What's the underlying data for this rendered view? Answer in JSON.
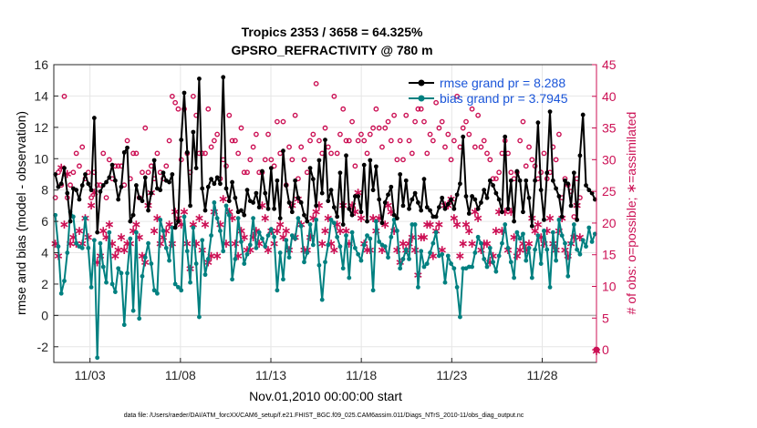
{
  "chart_data": {
    "type": "line",
    "title_line1": "Tropics 2353 / 3658 = 64.325%",
    "title_line2": "GPSRO_REFRACTIVITY @ 780 m",
    "xlabel": "Nov.01,2010 00:00:00 start",
    "ylabel_left": "rmse and bias (model - observation)",
    "ylabel_right": "# of obs: o=possible; ∗=assimilated",
    "footnote": "data file: /Users/raeder/DAI/ATM_forcXX/CAM6_setup/f.e21.FHIST_BGC.f09_025.CAM6assim.011/Diags_NTrS_2010-11/obs_diag_output.nc",
    "xlim": [
      0.5,
      30.5
    ],
    "ylim_left": [
      -3,
      16
    ],
    "ylim_right": [
      -2,
      45
    ],
    "x_ticks": [
      2.5,
      7.5,
      12.5,
      17.5,
      22.5,
      27.5
    ],
    "x_tick_labels": [
      "11/03",
      "11/08",
      "11/13",
      "11/18",
      "11/23",
      "11/28"
    ],
    "y_left_ticks": [
      "-2",
      "0",
      "2",
      "4",
      "6",
      "8",
      "10",
      "12",
      "14",
      "16"
    ],
    "y_right_ticks": [
      "0",
      "5",
      "10",
      "15",
      "20",
      "25",
      "30",
      "35",
      "40",
      "45"
    ],
    "colors": {
      "rmse": "#000000",
      "bias": "#008080",
      "obs": "#cc1155",
      "legend_text": "#1a55d9",
      "zero_line": "#b0b0b0"
    },
    "legend": [
      {
        "label": "rmse grand pr = 8.288",
        "color": "#000000"
      },
      {
        "label": "bias grand pr = 3.7945",
        "color": "#008080"
      }
    ],
    "series": [
      {
        "name": "rmse",
        "values": [
          9.0,
          8.2,
          8.4,
          9.4,
          7.8,
          6.0,
          8.1,
          8.0,
          7.4,
          8.3,
          9.0,
          8.4,
          8.0,
          12.6,
          5.3,
          7.9,
          8.3,
          8.5,
          8.8,
          9.6,
          8.6,
          7.4,
          8.2,
          10.4,
          10.7,
          6.0,
          6.4,
          8.3,
          7.5,
          7.3,
          8.8,
          6.7,
          7.8,
          9.9,
          8.1,
          8.0,
          9.1,
          8.6,
          8.5,
          9.0,
          5.6,
          6.0,
          11.2,
          14.2,
          10.4,
          7.0,
          11.7,
          9.4,
          15.1,
          8.1,
          6.7,
          8.2,
          8.7,
          8.4,
          8.8,
          8.4,
          15.2,
          8.1,
          7.3,
          8.5,
          7.5,
          6.6,
          6.7,
          6.4,
          8.0,
          7.3,
          7.2,
          7.8,
          6.9,
          9.2,
          7.8,
          6.8,
          9.4,
          6.8,
          8.6,
          6.2,
          10.5,
          8.3,
          7.2,
          6.6,
          8.6,
          7.5,
          7.2,
          6.4,
          6.0,
          9.4,
          8.7,
          7.0,
          9.9,
          7.8,
          11.2,
          7.3,
          8.0,
          6.9,
          6.3,
          9.1,
          5.8,
          10.2,
          6.8,
          6.4,
          7.6,
          7.6,
          6.6,
          9.6,
          6.0,
          9.9,
          8.0,
          9.5,
          7.4,
          5.9,
          7.2,
          7.7,
          8.2,
          6.4,
          6.2,
          9.0,
          7.0,
          8.6,
          6.8,
          7.4,
          7.8,
          7.2,
          6.7,
          8.7,
          6.9,
          6.7,
          6.3,
          6.3,
          6.9,
          7.5,
          6.8,
          7.1,
          7.4,
          6.8,
          7.7,
          8.4,
          11.4,
          7.6,
          6.5,
          7.6,
          7.4,
          6.8,
          7.2,
          8.0,
          7.5,
          8.6,
          8.3,
          7.8,
          7.4,
          6.6,
          11.4,
          6.8,
          8.6,
          6.0,
          9.2,
          8.6,
          6.6,
          8.6,
          7.5,
          5.7,
          8.6,
          12.3,
          8.0,
          6.1,
          9.1,
          13.0,
          8.6,
          8.1,
          7.6,
          6.3,
          8.6,
          8.4,
          7.0,
          9.1,
          6.1,
          10.2,
          12.8,
          8.3,
          8.0,
          7.8,
          7.4
        ]
      },
      {
        "name": "bias",
        "values": [
          6.4,
          4.4,
          1.4,
          2.2,
          4.0,
          6.6,
          6.3,
          4.6,
          4.4,
          4.3,
          6.2,
          4.3,
          1.8,
          4.8,
          -2.7,
          4.6,
          3.1,
          2.1,
          5.3,
          2.0,
          1.5,
          3.0,
          2.7,
          -0.6,
          2.7,
          4.9,
          0.3,
          5.3,
          -0.2,
          2.5,
          3.7,
          4.6,
          3.3,
          1.6,
          1.4,
          6.1,
          5.4,
          4.3,
          3.5,
          5.6,
          2.0,
          1.8,
          1.6,
          6.3,
          4.1,
          2.1,
          5.6,
          3.3,
          -0.1,
          4.8,
          2.6,
          3.6,
          5.1,
          7.2,
          6.2,
          5.4,
          4.1,
          7.0,
          6.4,
          2.3,
          3.6,
          6.2,
          4.7,
          3.3,
          3.9,
          4.5,
          6.2,
          4.3,
          5.3,
          4.9,
          4.4,
          5.1,
          5.5,
          5.0,
          1.6,
          4.0,
          2.3,
          4.8,
          3.7,
          5.1,
          4.9,
          6.2,
          5.7,
          3.4,
          4.0,
          5.8,
          4.5,
          6.1,
          3.2,
          1.0,
          3.4,
          4.5,
          6.1,
          5.9,
          5.0,
          4.4,
          3.0,
          5.1,
          2.4,
          5.3,
          4.3,
          3.9,
          3.5,
          4.5,
          5.1,
          4.9,
          1.6,
          6.0,
          4.7,
          4.5,
          4.4,
          3.7,
          5.0,
          6.1,
          5.4,
          3.0,
          3.6,
          4.2,
          3.6,
          5.8,
          5.8,
          1.8,
          4.1,
          3.1,
          3.3,
          4.0,
          4.6,
          5.3,
          3.8,
          3.9,
          2.1,
          3.8,
          3.3,
          3.0,
          1.8,
          -0.1,
          3.0,
          3.0,
          3.1,
          3.1,
          4.0,
          5.0,
          4.6,
          3.6,
          3.1,
          4.3,
          3.4,
          2.8,
          3.8,
          4.6,
          5.8,
          4.3,
          3.4,
          2.4,
          5.3,
          4.9,
          5.2,
          3.5,
          4.3,
          2.4,
          4.2,
          5.1,
          3.3,
          5.4,
          4.2,
          1.8,
          5.3,
          3.5,
          6.1,
          5.1,
          4.6,
          2.5,
          4.6,
          5.8,
          4.2,
          3.9,
          4.8,
          4.4,
          5.6,
          4.7,
          5.2
        ]
      },
      {
        "name": "obs_possible",
        "values": [
          24,
          28,
          26,
          40,
          24,
          26,
          28,
          31,
          29,
          32,
          27,
          28,
          24,
          28,
          26,
          26,
          31,
          24,
          30,
          27,
          29,
          29,
          29,
          26,
          33,
          27,
          31,
          31,
          24,
          28,
          35,
          28,
          29,
          27,
          31,
          28,
          27,
          29,
          33,
          40,
          39,
          38,
          30,
          38,
          31,
          28,
          40,
          37,
          31,
          31,
          31,
          38,
          32,
          33,
          34,
          27,
          30,
          29,
          37,
          33,
          33,
          31,
          35,
          28,
          28,
          30,
          32,
          34,
          28,
          28,
          30,
          34,
          30,
          29,
          36,
          31,
          36,
          26,
          32,
          30,
          37,
          27,
          32,
          30,
          28,
          33,
          34,
          42,
          33,
          31,
          35,
          32,
          31,
          40,
          31,
          34,
          38,
          33,
          33,
          36,
          29,
          33,
          34,
          33,
          31,
          34,
          35,
          38,
          35,
          32,
          35,
          36,
          33,
          37,
          30,
          33,
          30,
          37,
          33,
          31,
          36,
          38,
          38,
          36,
          31,
          34,
          33,
          39,
          35,
          36,
          32,
          34,
          30,
          33,
          40,
          32,
          35,
          36,
          34,
          38,
          32,
          37,
          32,
          33,
          31,
          30,
          27,
          27,
          28,
          31,
          33,
          31,
          28,
          27,
          28,
          33,
          36,
          29,
          32,
          30,
          29,
          27,
          28,
          31,
          27,
          28,
          32,
          30,
          34,
          24,
          27,
          26,
          25,
          21,
          27,
          24
        ]
      },
      {
        "name": "obs_assimilated",
        "values": [
          17,
          15,
          29,
          20,
          28,
          17,
          18,
          17,
          19,
          17,
          21,
          18,
          23,
          25,
          14,
          15,
          19,
          18,
          20,
          17,
          15,
          16,
          18,
          16,
          17,
          17,
          19,
          20,
          18,
          15,
          14,
          23,
          25,
          19,
          21,
          17,
          18,
          19,
          20,
          17,
          22,
          21,
          20,
          22,
          17,
          13,
          20,
          17,
          21,
          16,
          20,
          14,
          15,
          22,
          15,
          20,
          24,
          17,
          22,
          21,
          17,
          15,
          19,
          18,
          16,
          16,
          18,
          19,
          17,
          23,
          21,
          16,
          19,
          17,
          19,
          20,
          18,
          19,
          16,
          23,
          18,
          24,
          20,
          16,
          16,
          18,
          21,
          22,
          23,
          17,
          19,
          21,
          17,
          16,
          20,
          19,
          23,
          19,
          17,
          23,
          22,
          25,
          21,
          17,
          16,
          16,
          21,
          19,
          21,
          16,
          20,
          23,
          22,
          19,
          16,
          14,
          17,
          16,
          17,
          18,
          16,
          12,
          18,
          18,
          20,
          20,
          15,
          19,
          20,
          16,
          23,
          23,
          24,
          21,
          20,
          15,
          17,
          20,
          19,
          17,
          22,
          21,
          16,
          17,
          17,
          14,
          15,
          19,
          22,
          19,
          22,
          16,
          22,
          18,
          15,
          16,
          17,
          16,
          17,
          21,
          19,
          20,
          18,
          17,
          19,
          21,
          17,
          16,
          19,
          21,
          16,
          15,
          17,
          18,
          23,
          18
        ]
      }
    ]
  }
}
